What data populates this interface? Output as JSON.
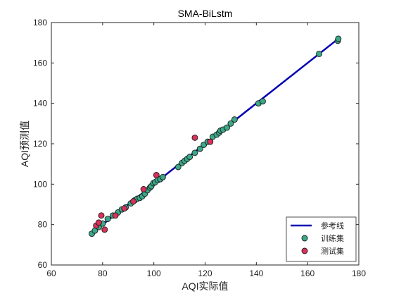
{
  "chart_data": {
    "type": "scatter",
    "title": "SMA-BiLstm",
    "xlabel": "AQI实际值",
    "ylabel": "AQI预测值",
    "xlim": [
      60,
      180
    ],
    "ylim": [
      60,
      180
    ],
    "xticks": [
      60,
      80,
      100,
      120,
      140,
      160,
      180
    ],
    "yticks": [
      60,
      80,
      100,
      120,
      140,
      160,
      180
    ],
    "grid": false,
    "legend_position": "bottom-right",
    "series": [
      {
        "name": "参考线",
        "kind": "line",
        "color": "#0000b4",
        "x": [
          75,
          172
        ],
        "y": [
          75,
          172
        ]
      },
      {
        "name": "训练集",
        "kind": "scatter",
        "color": "#3aa889",
        "x": [
          75.8,
          77,
          78.5,
          80,
          82,
          84,
          86,
          87.5,
          89,
          91,
          92.5,
          93.5,
          94.5,
          95.5,
          96.5,
          97.5,
          98.5,
          99,
          99.8,
          100.5,
          101.5,
          102.5,
          103.5,
          109.5,
          111,
          112,
          113,
          114,
          116,
          118,
          119.5,
          121,
          123,
          124.5,
          125.5,
          126,
          127,
          128.5,
          130,
          131.5,
          140.8,
          142.5,
          164.5,
          171.8,
          172
        ],
        "y": [
          75.5,
          77,
          78.8,
          80.5,
          82.8,
          84.5,
          86,
          87.5,
          88.5,
          90.5,
          92,
          92.8,
          93.2,
          94,
          95.3,
          97,
          98.3,
          99,
          100.5,
          101,
          102,
          102.5,
          103.5,
          108.5,
          110.5,
          111.5,
          112.5,
          113.5,
          115.5,
          117.5,
          119.5,
          121,
          123.5,
          124.5,
          125.5,
          126.5,
          127,
          128,
          130,
          132,
          140,
          141,
          164.5,
          171,
          172
        ]
      },
      {
        "name": "测试集",
        "kind": "scatter",
        "color": "#d8325a",
        "x": [
          77.5,
          78.5,
          79.5,
          80.8,
          85,
          88.5,
          92,
          96,
          101,
          116,
          122
        ],
        "y": [
          79.5,
          81,
          84.5,
          77.5,
          84.5,
          88,
          91.5,
          97.5,
          104.5,
          123,
          121
        ]
      }
    ]
  }
}
